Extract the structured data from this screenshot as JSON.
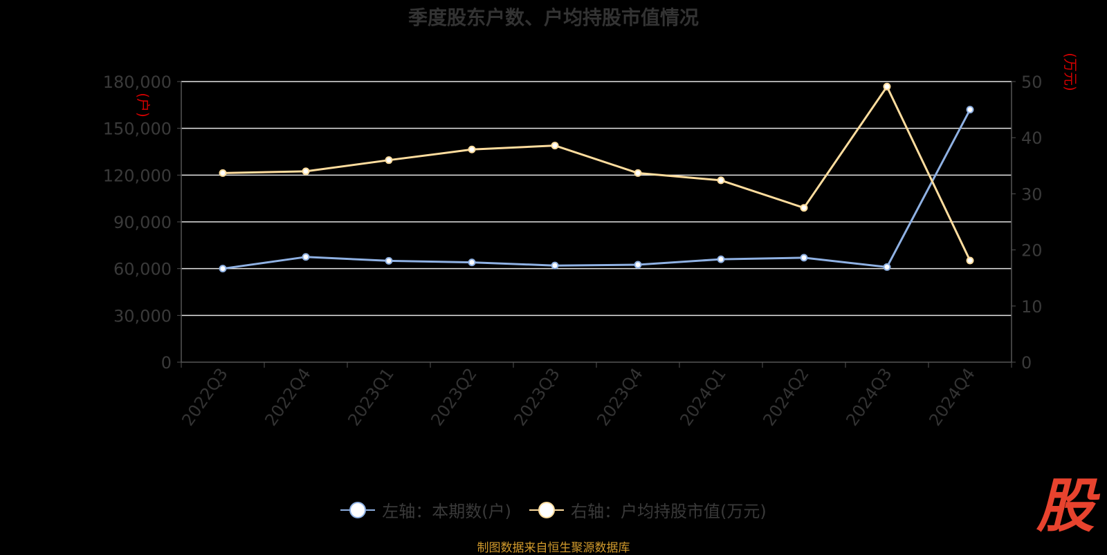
{
  "chart_data": {
    "type": "line",
    "title": "季度股东户数、户均持股市值情况",
    "categories": [
      "2022Q3",
      "2022Q4",
      "2023Q1",
      "2023Q2",
      "2023Q3",
      "2023Q4",
      "2024Q1",
      "2024Q2",
      "2024Q3",
      "2024Q4"
    ],
    "series": [
      {
        "name": "左轴：本期数(户)",
        "axis": "left",
        "color": "#8fb1e3",
        "values": [
          60000,
          67500,
          65000,
          64000,
          62000,
          62500,
          66000,
          67000,
          61000,
          162000
        ]
      },
      {
        "name": "右轴：户均持股市值(万元)",
        "axis": "right",
        "color": "#ffdd9e",
        "values": [
          33.7,
          34.0,
          36.0,
          37.9,
          38.6,
          33.7,
          32.4,
          27.5,
          49.1,
          18.1
        ]
      }
    ],
    "yleft": {
      "label": "(户)",
      "ylim": [
        0,
        180000
      ],
      "ticks": [
        "0",
        "30,000",
        "60,000",
        "90,000",
        "120,000",
        "150,000",
        "180,000"
      ]
    },
    "yright": {
      "label": "(万元)",
      "ylim": [
        0,
        50
      ],
      "ticks": [
        "0",
        "10",
        "20",
        "30",
        "40",
        "50"
      ]
    },
    "grid": true,
    "legend": "bottom"
  },
  "footer": {
    "source": "制图数据来自恒生聚源数据库",
    "logo": "股"
  }
}
